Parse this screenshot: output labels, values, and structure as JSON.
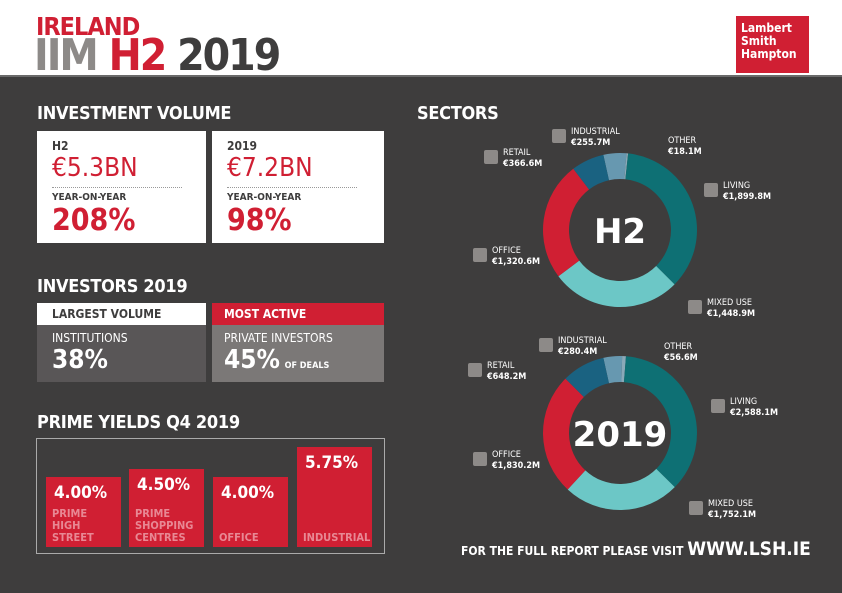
{
  "header": {
    "line1": "IRELAND",
    "iim": "IIM",
    "h2": "H2",
    "year": "2019",
    "logo": [
      "Lambert",
      "Smith",
      "Hampton"
    ]
  },
  "investment": {
    "title": "INVESTMENT VOLUME",
    "cards": [
      {
        "period": "H2",
        "value": "€5.3BN",
        "yoy_label": "YEAR-ON-YEAR",
        "yoy": "208%"
      },
      {
        "period": "2019",
        "value": "€7.2BN",
        "yoy_label": "YEAR-ON-YEAR",
        "yoy": "98%"
      }
    ]
  },
  "investors": {
    "title": "INVESTORS 2019",
    "largest": {
      "tag": "LARGEST VOLUME",
      "name": "INSTITUTIONS",
      "pct": "38%"
    },
    "active": {
      "tag": "MOST ACTIVE",
      "name": "PRIVATE INVESTORS",
      "pct": "45%",
      "suffix": "OF DEALS"
    }
  },
  "sectors_title": "SECTORS",
  "footer": {
    "text": "FOR THE FULL REPORT PLEASE VISIT",
    "url": "WWW.LSH.IE"
  },
  "colors": {
    "red": "#d01f33",
    "living": "#0e7074",
    "mixed_use": "#6cc7c6",
    "office": "#d01f33",
    "retail": "#1a6281",
    "industrial": "#6798b0",
    "other": "#8aa9b8"
  },
  "chart_data": [
    {
      "type": "pie",
      "title": "PRIME YIELDS Q4 2019",
      "subtype": "bar",
      "categories": [
        "PRIME HIGH STREET",
        "PRIME SHOPPING CENTRES",
        "OFFICE",
        "INDUSTRIAL"
      ],
      "values": [
        4.0,
        4.5,
        4.0,
        5.75
      ],
      "labels": [
        "4.00%",
        "4.50%",
        "4.00%",
        "5.75%"
      ]
    },
    {
      "type": "pie",
      "center_label": "H2",
      "categories": [
        "INDUSTRIAL",
        "OTHER",
        "LIVING",
        "MIXED USE",
        "OFFICE",
        "RETAIL"
      ],
      "values": [
        255.7,
        18.1,
        1899.8,
        1448.9,
        1320.6,
        366.6
      ],
      "labels": [
        "€255.7M",
        "€18.1M",
        "€1,899.8M",
        "€1,448.9M",
        "€1,320.6M",
        "€366.6M"
      ]
    },
    {
      "type": "pie",
      "center_label": "2019",
      "categories": [
        "INDUSTRIAL",
        "OTHER",
        "LIVING",
        "MIXED USE",
        "OFFICE",
        "RETAIL"
      ],
      "values": [
        280.4,
        56.6,
        2588.1,
        1752.1,
        1830.2,
        648.2
      ],
      "labels": [
        "€280.4M",
        "€56.6M",
        "€2,588.1M",
        "€1,752.1M",
        "€1,830.2M",
        "€648.2M"
      ]
    }
  ]
}
